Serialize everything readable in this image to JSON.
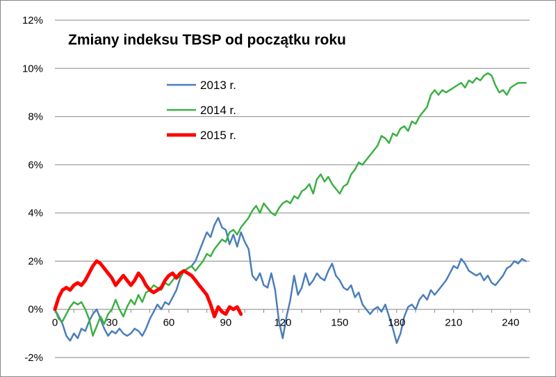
{
  "chart_data": {
    "type": "line",
    "title": "Zmiany indeksu TBSP od początku roku",
    "xlabel": "",
    "ylabel": "",
    "xlim": [
      0,
      250
    ],
    "ylim": [
      -2,
      12
    ],
    "x_ticks": [
      0,
      30,
      60,
      90,
      120,
      150,
      180,
      210,
      240
    ],
    "x_tick_labels": [
      "0",
      "30",
      "60",
      "90",
      "120",
      "150",
      "180",
      "210",
      "240"
    ],
    "y_ticks": [
      -2,
      0,
      2,
      4,
      6,
      8,
      10,
      12
    ],
    "y_tick_labels": [
      "-2%",
      "0%",
      "2%",
      "4%",
      "6%",
      "8%",
      "10%",
      "12%"
    ],
    "grid": "horizontal",
    "legend_position": "top-left",
    "series": [
      {
        "name": "2013 r.",
        "color": "#4a7ebb",
        "width": 2.5,
        "points": [
          [
            0,
            0
          ],
          [
            2,
            -0.3
          ],
          [
            4,
            -0.6
          ],
          [
            6,
            -1.1
          ],
          [
            8,
            -1.3
          ],
          [
            10,
            -1.0
          ],
          [
            12,
            -1.2
          ],
          [
            14,
            -0.8
          ],
          [
            16,
            -0.9
          ],
          [
            18,
            -0.5
          ],
          [
            20,
            -0.2
          ],
          [
            22,
            0.0
          ],
          [
            24,
            -0.4
          ],
          [
            26,
            -0.8
          ],
          [
            28,
            -1.1
          ],
          [
            30,
            -0.9
          ],
          [
            32,
            -1.0
          ],
          [
            34,
            -0.8
          ],
          [
            36,
            -1.0
          ],
          [
            38,
            -1.1
          ],
          [
            40,
            -1.0
          ],
          [
            42,
            -0.8
          ],
          [
            44,
            -0.9
          ],
          [
            46,
            -1.1
          ],
          [
            48,
            -0.8
          ],
          [
            50,
            -0.4
          ],
          [
            52,
            -0.1
          ],
          [
            54,
            0.2
          ],
          [
            56,
            0.0
          ],
          [
            58,
            0.3
          ],
          [
            60,
            0.2
          ],
          [
            62,
            0.5
          ],
          [
            64,
            0.8
          ],
          [
            66,
            1.3
          ],
          [
            68,
            1.6
          ],
          [
            70,
            1.7
          ],
          [
            72,
            1.8
          ],
          [
            74,
            2.0
          ],
          [
            76,
            2.4
          ],
          [
            78,
            2.8
          ],
          [
            80,
            3.2
          ],
          [
            82,
            3.0
          ],
          [
            84,
            3.5
          ],
          [
            86,
            3.8
          ],
          [
            88,
            3.4
          ],
          [
            90,
            3.3
          ],
          [
            92,
            2.7
          ],
          [
            94,
            3.1
          ],
          [
            96,
            2.6
          ],
          [
            98,
            3.2
          ],
          [
            100,
            2.8
          ],
          [
            102,
            2.5
          ],
          [
            104,
            1.4
          ],
          [
            106,
            1.2
          ],
          [
            108,
            1.5
          ],
          [
            110,
            1.0
          ],
          [
            112,
            0.9
          ],
          [
            114,
            1.5
          ],
          [
            116,
            0.8
          ],
          [
            118,
            -0.5
          ],
          [
            120,
            -1.2
          ],
          [
            122,
            -0.3
          ],
          [
            124,
            0.4
          ],
          [
            126,
            1.4
          ],
          [
            128,
            0.6
          ],
          [
            130,
            0.9
          ],
          [
            132,
            1.5
          ],
          [
            134,
            1.0
          ],
          [
            136,
            1.2
          ],
          [
            138,
            1.5
          ],
          [
            140,
            1.3
          ],
          [
            142,
            1.2
          ],
          [
            144,
            1.6
          ],
          [
            146,
            1.9
          ],
          [
            148,
            1.4
          ],
          [
            150,
            1.2
          ],
          [
            152,
            0.9
          ],
          [
            154,
            0.8
          ],
          [
            156,
            1.0
          ],
          [
            158,
            0.5
          ],
          [
            160,
            0.7
          ],
          [
            162,
            0.2
          ],
          [
            164,
            0.0
          ],
          [
            166,
            -0.2
          ],
          [
            168,
            0.0
          ],
          [
            170,
            0.1
          ],
          [
            172,
            -0.1
          ],
          [
            174,
            0.2
          ],
          [
            176,
            -0.3
          ],
          [
            178,
            -0.8
          ],
          [
            180,
            -1.4
          ],
          [
            182,
            -1.0
          ],
          [
            184,
            -0.3
          ],
          [
            186,
            0.1
          ],
          [
            188,
            0.2
          ],
          [
            190,
            0.0
          ],
          [
            192,
            0.4
          ],
          [
            194,
            0.6
          ],
          [
            196,
            0.4
          ],
          [
            198,
            0.8
          ],
          [
            200,
            0.6
          ],
          [
            202,
            0.8
          ],
          [
            204,
            1.0
          ],
          [
            206,
            1.2
          ],
          [
            208,
            1.5
          ],
          [
            210,
            1.8
          ],
          [
            212,
            1.7
          ],
          [
            214,
            2.1
          ],
          [
            216,
            1.9
          ],
          [
            218,
            1.6
          ],
          [
            220,
            1.5
          ],
          [
            222,
            1.4
          ],
          [
            224,
            1.5
          ],
          [
            226,
            1.2
          ],
          [
            228,
            1.4
          ],
          [
            230,
            1.1
          ],
          [
            232,
            1.0
          ],
          [
            234,
            1.2
          ],
          [
            236,
            1.4
          ],
          [
            238,
            1.7
          ],
          [
            240,
            1.8
          ],
          [
            242,
            2.0
          ],
          [
            244,
            1.9
          ],
          [
            246,
            2.1
          ],
          [
            248,
            2.0
          ]
        ]
      },
      {
        "name": "2014 r.",
        "color": "#3cb043",
        "width": 2.5,
        "points": [
          [
            0,
            0
          ],
          [
            2,
            -0.4
          ],
          [
            4,
            -0.5
          ],
          [
            6,
            -0.2
          ],
          [
            8,
            0.1
          ],
          [
            10,
            0.3
          ],
          [
            12,
            0.2
          ],
          [
            14,
            0.3
          ],
          [
            16,
            0.0
          ],
          [
            18,
            -0.4
          ],
          [
            20,
            -1.1
          ],
          [
            22,
            -0.7
          ],
          [
            24,
            -0.3
          ],
          [
            26,
            -0.6
          ],
          [
            28,
            -0.2
          ],
          [
            30,
            0.0
          ],
          [
            32,
            0.4
          ],
          [
            34,
            0.0
          ],
          [
            36,
            -0.3
          ],
          [
            38,
            0.1
          ],
          [
            40,
            0.4
          ],
          [
            42,
            0.2
          ],
          [
            44,
            0.6
          ],
          [
            46,
            0.3
          ],
          [
            48,
            0.7
          ],
          [
            50,
            0.8
          ],
          [
            52,
            1.0
          ],
          [
            54,
            0.9
          ],
          [
            56,
            0.8
          ],
          [
            58,
            1.1
          ],
          [
            60,
            1.0
          ],
          [
            62,
            1.2
          ],
          [
            64,
            1.4
          ],
          [
            66,
            1.3
          ],
          [
            68,
            1.6
          ],
          [
            70,
            1.7
          ],
          [
            72,
            1.8
          ],
          [
            74,
            1.6
          ],
          [
            76,
            1.8
          ],
          [
            78,
            2.0
          ],
          [
            80,
            2.3
          ],
          [
            82,
            2.2
          ],
          [
            84,
            2.5
          ],
          [
            86,
            2.7
          ],
          [
            88,
            2.9
          ],
          [
            90,
            2.8
          ],
          [
            92,
            3.2
          ],
          [
            94,
            3.3
          ],
          [
            96,
            3.1
          ],
          [
            98,
            3.4
          ],
          [
            100,
            3.6
          ],
          [
            102,
            3.8
          ],
          [
            104,
            4.1
          ],
          [
            106,
            4.3
          ],
          [
            108,
            4.0
          ],
          [
            110,
            4.4
          ],
          [
            112,
            4.2
          ],
          [
            114,
            4.0
          ],
          [
            116,
            3.9
          ],
          [
            118,
            4.2
          ],
          [
            120,
            4.4
          ],
          [
            122,
            4.5
          ],
          [
            124,
            4.4
          ],
          [
            126,
            4.7
          ],
          [
            128,
            4.6
          ],
          [
            130,
            4.9
          ],
          [
            132,
            5.0
          ],
          [
            134,
            5.2
          ],
          [
            136,
            4.8
          ],
          [
            138,
            5.4
          ],
          [
            140,
            5.6
          ],
          [
            142,
            5.3
          ],
          [
            144,
            5.5
          ],
          [
            146,
            5.2
          ],
          [
            148,
            5.0
          ],
          [
            150,
            4.8
          ],
          [
            152,
            5.1
          ],
          [
            154,
            5.2
          ],
          [
            156,
            5.6
          ],
          [
            158,
            5.8
          ],
          [
            160,
            6.1
          ],
          [
            162,
            6.0
          ],
          [
            164,
            6.2
          ],
          [
            166,
            6.4
          ],
          [
            168,
            6.6
          ],
          [
            170,
            6.8
          ],
          [
            172,
            7.2
          ],
          [
            174,
            7.1
          ],
          [
            176,
            6.9
          ],
          [
            178,
            7.3
          ],
          [
            180,
            7.2
          ],
          [
            182,
            7.5
          ],
          [
            184,
            7.6
          ],
          [
            186,
            7.4
          ],
          [
            188,
            7.8
          ],
          [
            190,
            7.7
          ],
          [
            192,
            8.0
          ],
          [
            194,
            8.2
          ],
          [
            196,
            8.4
          ],
          [
            198,
            8.9
          ],
          [
            200,
            9.1
          ],
          [
            202,
            8.9
          ],
          [
            204,
            9.1
          ],
          [
            206,
            9.0
          ],
          [
            208,
            9.1
          ],
          [
            210,
            9.2
          ],
          [
            212,
            9.3
          ],
          [
            214,
            9.4
          ],
          [
            216,
            9.2
          ],
          [
            218,
            9.5
          ],
          [
            220,
            9.4
          ],
          [
            222,
            9.6
          ],
          [
            224,
            9.5
          ],
          [
            226,
            9.7
          ],
          [
            228,
            9.8
          ],
          [
            230,
            9.7
          ],
          [
            232,
            9.3
          ],
          [
            234,
            9.0
          ],
          [
            236,
            9.1
          ],
          [
            238,
            8.9
          ],
          [
            240,
            9.2
          ],
          [
            242,
            9.3
          ],
          [
            244,
            9.4
          ],
          [
            246,
            9.4
          ],
          [
            248,
            9.4
          ]
        ]
      },
      {
        "name": "2015 r.",
        "color": "#ff0000",
        "width": 5,
        "points": [
          [
            0,
            0
          ],
          [
            2,
            0.5
          ],
          [
            4,
            0.8
          ],
          [
            6,
            0.9
          ],
          [
            8,
            0.8
          ],
          [
            10,
            1.0
          ],
          [
            12,
            1.1
          ],
          [
            14,
            1.0
          ],
          [
            16,
            1.2
          ],
          [
            18,
            1.5
          ],
          [
            20,
            1.8
          ],
          [
            22,
            2.0
          ],
          [
            24,
            1.9
          ],
          [
            26,
            1.7
          ],
          [
            28,
            1.5
          ],
          [
            30,
            1.3
          ],
          [
            32,
            1.0
          ],
          [
            34,
            1.2
          ],
          [
            36,
            1.4
          ],
          [
            38,
            1.2
          ],
          [
            40,
            1.0
          ],
          [
            42,
            1.2
          ],
          [
            44,
            1.5
          ],
          [
            46,
            1.3
          ],
          [
            48,
            1.0
          ],
          [
            50,
            0.8
          ],
          [
            52,
            0.7
          ],
          [
            54,
            0.8
          ],
          [
            56,
            0.9
          ],
          [
            58,
            1.2
          ],
          [
            60,
            1.4
          ],
          [
            62,
            1.5
          ],
          [
            64,
            1.3
          ],
          [
            66,
            1.5
          ],
          [
            68,
            1.6
          ],
          [
            70,
            1.5
          ],
          [
            72,
            1.4
          ],
          [
            74,
            1.2
          ],
          [
            76,
            1.0
          ],
          [
            78,
            0.8
          ],
          [
            80,
            0.6
          ],
          [
            82,
            0.2
          ],
          [
            84,
            -0.3
          ],
          [
            86,
            0.1
          ],
          [
            88,
            -0.1
          ],
          [
            90,
            -0.2
          ],
          [
            92,
            0.1
          ],
          [
            94,
            0.0
          ],
          [
            96,
            0.1
          ],
          [
            98,
            -0.2
          ]
        ]
      }
    ]
  }
}
